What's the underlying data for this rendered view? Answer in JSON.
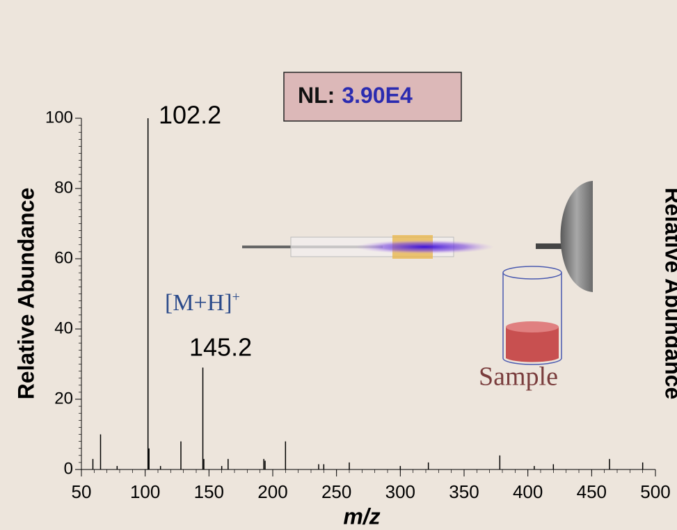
{
  "chart_data": {
    "type": "spectrum",
    "x_label": "m/z",
    "y_label": "Relative Abundance",
    "right_label": "Relative Abundance",
    "nl_label": "NL:",
    "nl_value": "3.90E4",
    "x": [
      59,
      65,
      78,
      102.2,
      103,
      112,
      128,
      145.2,
      146,
      160,
      165,
      193,
      194,
      210,
      236,
      240,
      260,
      300,
      322,
      378,
      405,
      420,
      464,
      490
    ],
    "values": [
      3,
      10,
      1,
      100,
      6,
      1,
      8,
      29,
      3,
      1,
      3,
      3,
      2.5,
      8,
      1.5,
      1.5,
      2,
      1,
      2,
      4,
      1,
      1.5,
      3,
      2
    ],
    "color": "#000000",
    "xlim": [
      50,
      500
    ],
    "xticks": [
      50,
      100,
      150,
      200,
      250,
      300,
      350,
      400,
      450,
      500
    ],
    "ylim": [
      0,
      100
    ],
    "yticks": [
      0,
      20,
      40,
      60,
      80,
      100
    ],
    "annotations": [
      {
        "text": "102.2"
      },
      {
        "text": "[M+H]",
        "sup": "+"
      },
      {
        "text": "145.2"
      },
      {
        "text": "Sample"
      }
    ]
  }
}
